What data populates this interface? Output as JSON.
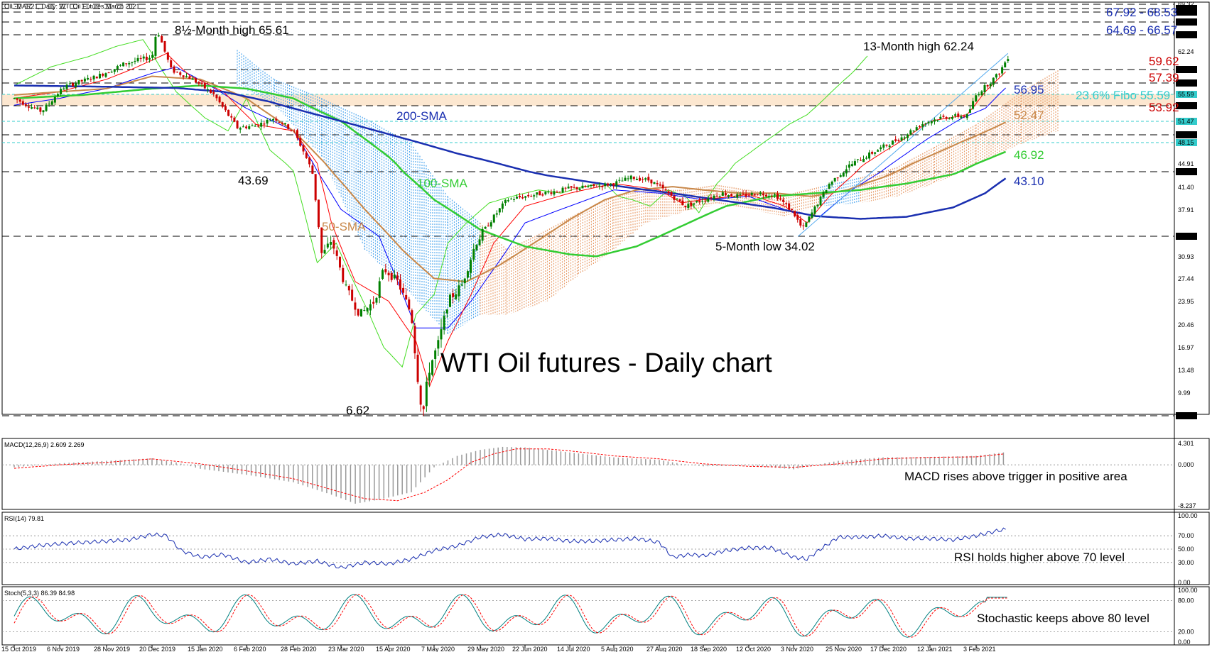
{
  "header": {
    "symbol_text": "OIL-MAR21, Daily:  WTI Oil Futures March 2021"
  },
  "main_title": "WTI Oil futures - Daily chart",
  "colors": {
    "up": "#008000",
    "down": "#cc0000",
    "sma50": "#c8884a",
    "sma100": "#33cc33",
    "sma200": "#1a2fb0",
    "tenkan": "#ff0000",
    "kijun": "#0000ff",
    "chikou": "#44dd22",
    "cloud_bull": "#e8a070",
    "cloud_bear": "#55aaee",
    "fibo_cyan": "#33cccc",
    "macd": "#999999",
    "signal": "#ff0000",
    "rsi": "#1a2fb0",
    "stoch_k": "#008080",
    "stoch_d": "#ff0000"
  },
  "annotations": {
    "high_85": "8½-Month high 65.61",
    "high_13": "13-Month high 62.24",
    "low_5": "5-Month low 34.02",
    "low_abs": "6.62",
    "low_4369": "43.69",
    "sma200_label": "200-SMA",
    "sma100_label": "100-SMA",
    "sma50_label": "50-SMA"
  },
  "levels": {
    "l1": "67.92 - 68.53",
    "l2": "64.69 - 66.57",
    "l3": "59.62",
    "l4": "57.39",
    "l5": "56.95",
    "l6": "23.6% Fibo 55.59",
    "l7": "53.92",
    "l8": "52.47",
    "l9": "46.92",
    "l10": "43.10"
  },
  "indicators": {
    "macd_header": "MACD(12,26,9) 2.609 2.269",
    "macd_note": "MACD rises above trigger in positive area",
    "rsi_header": "RSI(14) 79.81",
    "rsi_note": "RSI holds higher above 70 level",
    "stoch_header": "Stoch(5,3,3) 86.39 84.98",
    "stoch_note": "Stochastic keeps above 80 level"
  },
  "axes": {
    "price_ticks": [
      "69.32",
      "68.53",
      "67.92",
      "66.57",
      "64.69",
      "62.24",
      "59.62",
      "57.39",
      "55.59",
      "53.92",
      "51.47",
      "49.40",
      "48.15",
      "44.91",
      "43.91",
      "41.40",
      "37.91",
      "34.02",
      "30.93",
      "27.44",
      "23.95",
      "20.46",
      "16.97",
      "13.48",
      "9.99",
      "6.62"
    ],
    "macd_ticks": [
      "4.301",
      "0.000",
      "-8.237"
    ],
    "rsi_ticks": [
      "100.00",
      "70.00",
      "50.00",
      "30.00",
      "0.00"
    ],
    "stoch_ticks": [
      "100.00",
      "80.00",
      "20.00",
      "0.00"
    ],
    "x_ticks": [
      "15 Oct 2019",
      "6 Nov 2019",
      "28 Nov 2019",
      "20 Dec 2019",
      "15 Jan 2020",
      "6 Feb 2020",
      "28 Feb 2020",
      "23 Mar 2020",
      "15 Apr 2020",
      "7 May 2020",
      "29 May 2020",
      "22 Jun 2020",
      "14 Jul 2020",
      "5 Aug 2020",
      "27 Aug 2020",
      "18 Sep 2020",
      "12 Oct 2020",
      "3 Nov 2020",
      "25 Nov 2020",
      "17 Dec 2020",
      "12 Jan 2021",
      "3 Feb 2021"
    ]
  },
  "chart_data": [
    {
      "type": "line",
      "title": "WTI Oil futures - Daily chart",
      "x": [
        "15 Oct 2019",
        "6 Nov 2019",
        "28 Nov 2019",
        "20 Dec 2019",
        "15 Jan 2020",
        "6 Feb 2020",
        "28 Feb 2020",
        "23 Mar 2020",
        "15 Apr 2020",
        "7 May 2020",
        "29 May 2020",
        "22 Jun 2020",
        "14 Jul 2020",
        "5 Aug 2020",
        "27 Aug 2020",
        "18 Sep 2020",
        "12 Oct 2020",
        "3 Nov 2020",
        "25 Nov 2020",
        "17 Dec 2020",
        "12 Jan 2021",
        "3 Feb 2021"
      ],
      "series": [
        {
          "name": "close",
          "values": [
            54.2,
            56.5,
            58.1,
            61.5,
            57.8,
            50.5,
            45.3,
            23.5,
            18.5,
            25.0,
            34.5,
            39.2,
            40.5,
            41.8,
            42.9,
            40.5,
            40.6,
            36.2,
            44.8,
            48.2,
            52.5,
            57.5
          ]
        },
        {
          "name": "50-SMA",
          "values": [
            54.0,
            55.0,
            56.2,
            58.0,
            58.5,
            56.0,
            52.0,
            44.0,
            34.0,
            27.0,
            27.5,
            30.5,
            35.5,
            38.8,
            41.0,
            41.8,
            41.0,
            40.2,
            40.5,
            43.0,
            46.5,
            50.5
          ]
        },
        {
          "name": "100-SMA",
          "values": [
            55.0,
            55.3,
            55.8,
            56.5,
            57.2,
            56.8,
            55.0,
            50.5,
            44.0,
            37.5,
            33.5,
            31.5,
            30.8,
            32.0,
            35.5,
            38.5,
            40.0,
            40.5,
            40.8,
            41.5,
            43.0,
            45.5
          ]
        },
        {
          "name": "200-SMA",
          "values": [
            56.0,
            56.0,
            56.1,
            56.3,
            56.4,
            56.0,
            55.0,
            53.5,
            51.0,
            48.0,
            45.5,
            43.5,
            42.0,
            41.0,
            40.5,
            39.5,
            38.5,
            37.0,
            36.5,
            37.0,
            39.0,
            42.0
          ]
        }
      ],
      "ylim": [
        6.62,
        69.32
      ],
      "grid": false
    },
    {
      "type": "bar",
      "title": "MACD(12,26,9) 2.609 2.269",
      "x": [
        "15 Oct 2019",
        "6 Nov 2019",
        "28 Nov 2019",
        "20 Dec 2019",
        "15 Jan 2020",
        "6 Feb 2020",
        "28 Feb 2020",
        "23 Mar 2020",
        "15 Apr 2020",
        "7 May 2020",
        "29 May 2020",
        "22 Jun 2020",
        "14 Jul 2020",
        "5 Aug 2020",
        "27 Aug 2020",
        "18 Sep 2020",
        "12 Oct 2020",
        "3 Nov 2020",
        "25 Nov 2020",
        "17 Dec 2020",
        "12 Jan 2021",
        "3 Feb 2021"
      ],
      "series": [
        {
          "name": "MACD",
          "values": [
            -0.5,
            0.3,
            0.8,
            1.3,
            -0.8,
            -2.0,
            -3.5,
            -7.8,
            -5.5,
            -0.5,
            3.0,
            3.6,
            2.5,
            1.5,
            1.0,
            -0.3,
            -0.1,
            -0.9,
            0.8,
            1.5,
            1.8,
            2.609
          ]
        },
        {
          "name": "Signal",
          "values": [
            -0.7,
            0.0,
            0.5,
            1.2,
            0.2,
            -1.2,
            -2.8,
            -6.0,
            -7.0,
            -3.5,
            1.5,
            3.2,
            2.8,
            1.8,
            1.2,
            0.2,
            -0.3,
            -0.5,
            0.2,
            1.2,
            1.6,
            2.269
          ]
        }
      ],
      "ylim": [
        -8.237,
        4.301
      ]
    },
    {
      "type": "line",
      "title": "RSI(14) 79.81",
      "x": [
        "15 Oct 2019",
        "6 Nov 2019",
        "28 Nov 2019",
        "20 Dec 2019",
        "15 Jan 2020",
        "6 Feb 2020",
        "28 Feb 2020",
        "23 Mar 2020",
        "15 Apr 2020",
        "7 May 2020",
        "29 May 2020",
        "22 Jun 2020",
        "14 Jul 2020",
        "5 Aug 2020",
        "27 Aug 2020",
        "18 Sep 2020",
        "12 Oct 2020",
        "3 Nov 2020",
        "25 Nov 2020",
        "17 Dec 2020",
        "12 Jan 2021",
        "3 Feb 2021"
      ],
      "series": [
        {
          "name": "RSI",
          "values": [
            50,
            58,
            62,
            72,
            38,
            30,
            28,
            22,
            35,
            55,
            68,
            65,
            62,
            64,
            60,
            40,
            52,
            38,
            68,
            70,
            66,
            79.81
          ]
        }
      ],
      "ylim": [
        0,
        100
      ]
    },
    {
      "type": "line",
      "title": "Stoch(5,3,3) 86.39 84.98",
      "x": [
        "15 Oct 2019",
        "6 Nov 2019",
        "28 Nov 2019",
        "20 Dec 2019",
        "15 Jan 2020",
        "6 Feb 2020",
        "28 Feb 2020",
        "23 Mar 2020",
        "15 Apr 2020",
        "7 May 2020",
        "29 May 2020",
        "22 Jun 2020",
        "14 Jul 2020",
        "5 Aug 2020",
        "27 Aug 2020",
        "18 Sep 2020",
        "12 Oct 2020",
        "3 Nov 2020",
        "25 Nov 2020",
        "17 Dec 2020",
        "12 Jan 2021",
        "3 Feb 2021"
      ],
      "series": [
        {
          "name": "%K",
          "values": [
            40,
            85,
            30,
            90,
            10,
            60,
            5,
            50,
            20,
            95,
            40,
            80,
            30,
            85,
            10,
            60,
            20,
            90,
            45,
            80,
            40,
            86.39
          ]
        },
        {
          "name": "%D",
          "values": [
            45,
            75,
            40,
            82,
            20,
            50,
            15,
            40,
            30,
            85,
            50,
            72,
            38,
            78,
            20,
            52,
            28,
            80,
            50,
            75,
            45,
            84.98
          ]
        }
      ],
      "ylim": [
        0,
        100
      ]
    }
  ]
}
